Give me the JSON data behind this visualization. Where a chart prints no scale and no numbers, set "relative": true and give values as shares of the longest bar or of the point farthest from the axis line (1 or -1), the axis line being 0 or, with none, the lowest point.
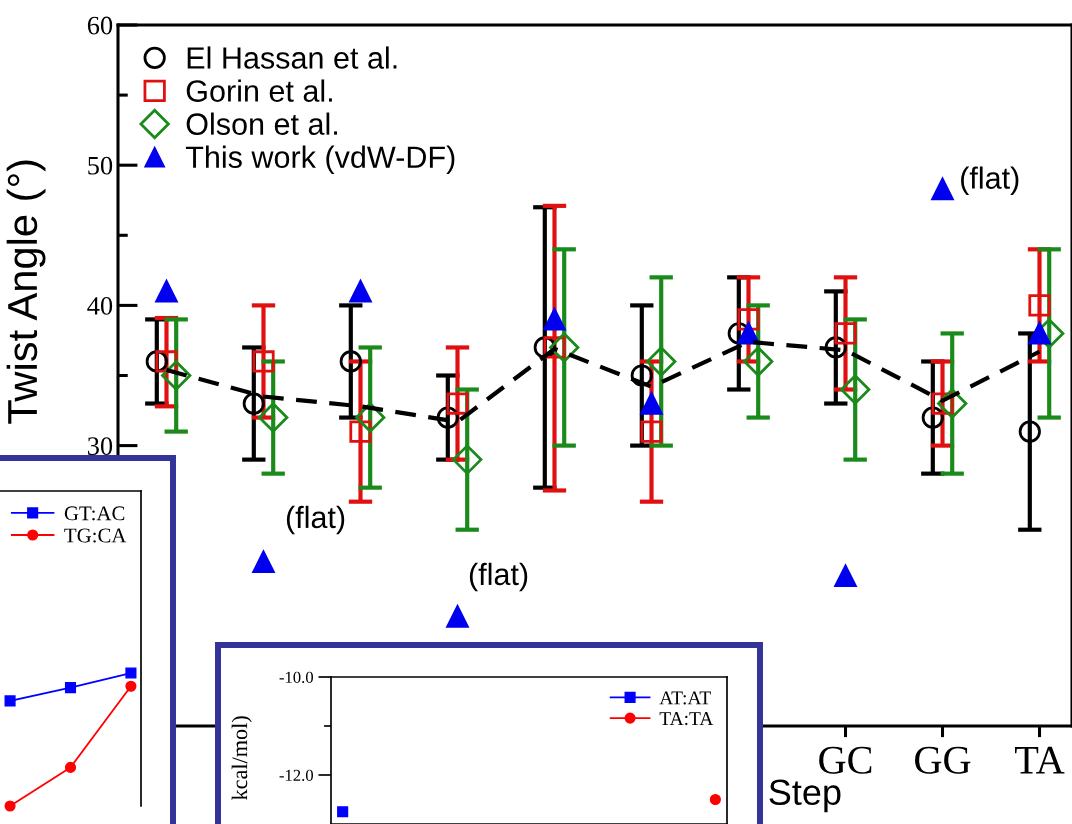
{
  "chart_data": [
    {
      "type": "scatter",
      "ylabel": "Twist Angle (°)",
      "xlabel": "Step",
      "categories": [
        null,
        null,
        null,
        null,
        null,
        null,
        null,
        "GC",
        "GG",
        "TA"
      ],
      "ylim": [
        10,
        60
      ],
      "yticks": [
        30,
        {
          "value": 35,
          "label": null
        },
        40,
        {
          "value": 45,
          "label": null
        },
        50,
        {
          "value": 55,
          "label": null
        },
        60
      ],
      "grid": false,
      "legend": "top left",
      "series": [
        {
          "name": "El Hassan et al.",
          "color": "#000000",
          "marker": "circle",
          "values": [
            36,
            33,
            36,
            32,
            37,
            35,
            38,
            37,
            32,
            31
          ],
          "errors": [
            3,
            4,
            4,
            3,
            10,
            5,
            4,
            4,
            4,
            7
          ]
        },
        {
          "name": "Gorin et al.",
          "color": "#e01010",
          "marker": "square",
          "values": [
            36,
            36,
            31,
            33,
            37,
            31,
            39,
            38,
            33,
            40
          ],
          "errors": [
            [
              32.8,
              39.1
            ],
            4,
            5,
            4,
            [
              26.8,
              47.1
            ],
            5,
            3,
            4,
            3,
            4
          ]
        },
        {
          "name": "Olson et al.",
          "color": "#1a8a1a",
          "marker": "diamond",
          "values": [
            35,
            32,
            32,
            29,
            37,
            36,
            36,
            34,
            33,
            38
          ],
          "errors": [
            4,
            4,
            5,
            5,
            7,
            6,
            4,
            5,
            5,
            6
          ]
        },
        {
          "name": "This work (vdW-DF)",
          "color": "#0000ee",
          "marker": "triangle",
          "values": [
            41,
            21.7,
            41,
            17.8,
            39,
            33,
            38,
            20.7,
            48.3,
            38
          ]
        },
        {
          "type": "line",
          "color": "#000000",
          "marker": "none",
          "line_style": "dashed",
          "values": [
            35.4,
            33.5,
            32.8,
            31.7,
            36.9,
            34.2,
            37.4,
            36.8,
            33.2,
            36.7
          ]
        }
      ],
      "annotations": [
        {
          "text": "(flat)",
          "x": "GG",
          "y": 48.3
        },
        "(flat)",
        "(flat)"
      ]
    },
    {
      "type": "line",
      "relative": true,
      "categories": [
        null,
        null,
        null,
        null,
        null,
        null,
        null
      ],
      "tick_labels": false,
      "grid": false,
      "legend": "top right",
      "series": [
        {
          "name": "GT:AC",
          "color": "#0000ff",
          "marker": "square",
          "values": [
            0.79,
            null,
            null,
            0.89,
            null,
            null,
            1
          ]
        },
        {
          "name": "TG:CA",
          "color": "#ff0000",
          "marker": "circle",
          "values": [
            0,
            null,
            null,
            0.29,
            null,
            null,
            0.9
          ]
        }
      ]
    },
    {
      "type": "line",
      "ylabel": "kcal/mol)",
      "categories": [
        null,
        null,
        null,
        null,
        null,
        null,
        null,
        null,
        null,
        null,
        null,
        null,
        null,
        null,
        null,
        null,
        null
      ],
      "tick_labels": "y",
      "grid": false,
      "legend": "top right",
      "ylim": [
        -13,
        -10
      ],
      "yticks": [
        {
          "value": -10,
          "label": "-10.0"
        },
        {
          "value": -11,
          "label": null
        },
        {
          "value": -12,
          "label": "-12.0"
        }
      ],
      "series": [
        {
          "name": "AT:AT",
          "color": "#0000ff",
          "marker": "square",
          "values": [
            -12.75,
            null,
            null,
            null,
            null,
            null,
            null,
            null,
            null,
            null,
            null,
            null,
            null,
            null,
            null,
            null,
            null
          ]
        },
        {
          "name": "TA:TA",
          "color": "#ff0000",
          "marker": "circle",
          "values": [
            null,
            null,
            null,
            null,
            null,
            null,
            null,
            null,
            null,
            null,
            null,
            null,
            null,
            null,
            null,
            null,
            -12.5
          ]
        }
      ]
    }
  ]
}
